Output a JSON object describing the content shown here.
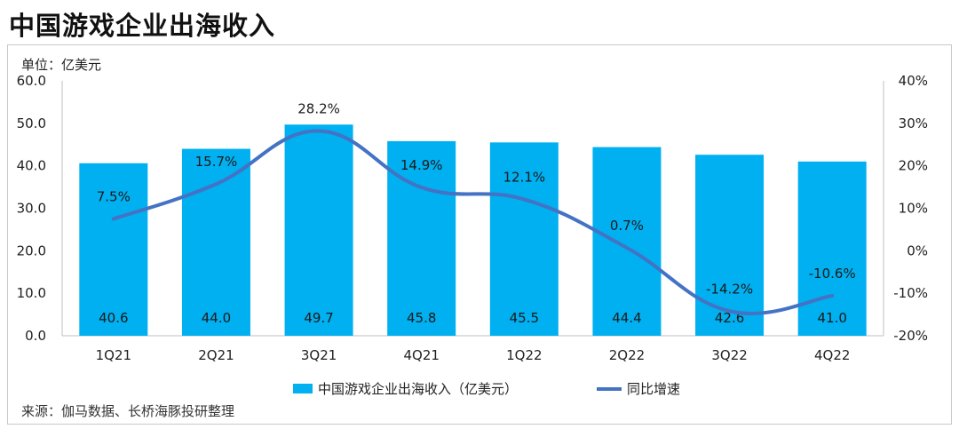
{
  "title": "中国游戏企业出海收入",
  "unit_label": "单位：亿美元",
  "source_note": "来源：伽马数据、长桥海豚投研整理",
  "colors": {
    "bar": "#00b0f0",
    "line": "#4472c4",
    "axis": "#bfbfbf"
  },
  "chart_data": {
    "type": "bar",
    "categories": [
      "1Q21",
      "2Q21",
      "3Q21",
      "4Q21",
      "1Q22",
      "2Q22",
      "3Q22",
      "4Q22"
    ],
    "series": [
      {
        "name": "中国游戏企业出海收入（亿美元）",
        "type": "bar",
        "axis": "left",
        "values": [
          40.6,
          44.0,
          49.7,
          45.8,
          45.5,
          44.4,
          42.6,
          41.0
        ],
        "labels": [
          "40.6",
          "44.0",
          "49.7",
          "45.8",
          "45.5",
          "44.4",
          "42.6",
          "41.0"
        ]
      },
      {
        "name": "同比增速",
        "type": "line",
        "axis": "right",
        "values": [
          7.5,
          15.7,
          28.2,
          14.9,
          12.1,
          0.7,
          -14.2,
          -10.6
        ],
        "labels": [
          "7.5%",
          "15.7%",
          "28.2%",
          "14.9%",
          "12.1%",
          "0.7%",
          "-14.2%",
          "-10.6%"
        ]
      }
    ],
    "ylim": [
      0,
      60
    ],
    "yticks": [
      "0.0",
      "10.0",
      "20.0",
      "30.0",
      "40.0",
      "50.0",
      "60.0"
    ],
    "y2lim": [
      -20,
      40
    ],
    "y2ticks": [
      "-20%",
      "-10%",
      "0%",
      "10%",
      "20%",
      "30%",
      "40%"
    ],
    "legend": "bottom",
    "grid": false
  }
}
